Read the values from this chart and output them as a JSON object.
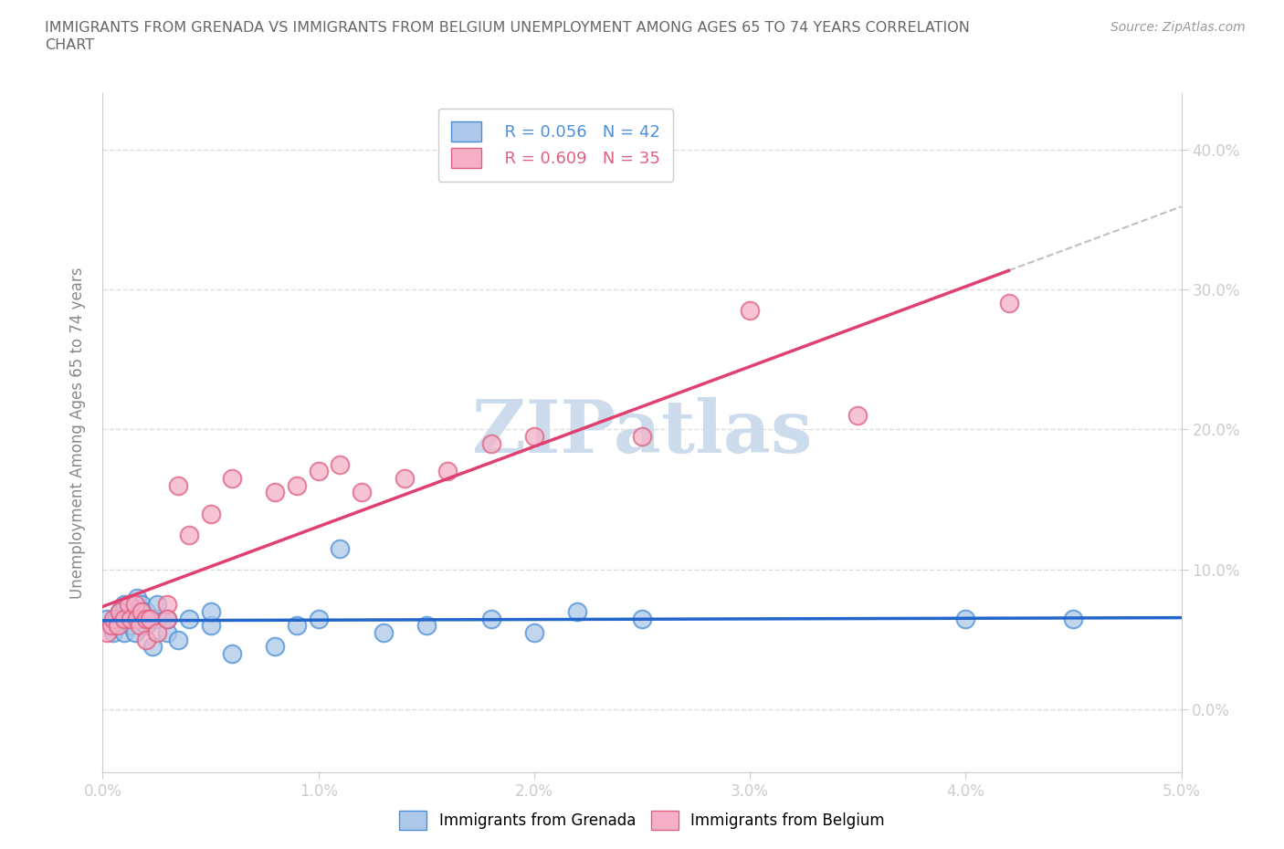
{
  "title_line1": "IMMIGRANTS FROM GRENADA VS IMMIGRANTS FROM BELGIUM UNEMPLOYMENT AMONG AGES 65 TO 74 YEARS CORRELATION",
  "title_line2": "CHART",
  "source_text": "Source: ZipAtlas.com",
  "ylabel": "Unemployment Among Ages 65 to 74 years",
  "xlim": [
    0.0,
    0.05
  ],
  "ylim": [
    -0.045,
    0.44
  ],
  "xticks": [
    0.0,
    0.01,
    0.02,
    0.03,
    0.04,
    0.05
  ],
  "yticks": [
    0.0,
    0.1,
    0.2,
    0.3,
    0.4
  ],
  "xtick_labels": [
    "0.0%",
    "1.0%",
    "2.0%",
    "3.0%",
    "4.0%",
    "5.0%"
  ],
  "ytick_labels": [
    "0.0%",
    "10.0%",
    "20.0%",
    "30.0%",
    "40.0%"
  ],
  "grenada_R": "0.056",
  "grenada_N": "42",
  "belgium_R": "0.609",
  "belgium_N": "35",
  "grenada_color": "#adc8e8",
  "belgium_color": "#f5b0c8",
  "grenada_edge": "#4a90d9",
  "belgium_edge": "#e06080",
  "trend_grenada_color": "#2266cc",
  "trend_belgium_color": "#e04070",
  "trend_dashed_color": "#c0c0c0",
  "background_color": "#ffffff",
  "title_color": "#666666",
  "tick_color": "#4a90d9",
  "grid_color": "#dddddd",
  "watermark_color": "#ccdcec",
  "grenada_x": [
    0.0002,
    0.0004,
    0.0005,
    0.0006,
    0.0007,
    0.0008,
    0.0009,
    0.001,
    0.001,
    0.0012,
    0.0013,
    0.0014,
    0.0015,
    0.0015,
    0.0016,
    0.0017,
    0.0018,
    0.002,
    0.002,
    0.0022,
    0.0023,
    0.0025,
    0.0025,
    0.003,
    0.003,
    0.0035,
    0.004,
    0.005,
    0.005,
    0.006,
    0.008,
    0.009,
    0.01,
    0.011,
    0.013,
    0.015,
    0.018,
    0.02,
    0.022,
    0.025,
    0.04,
    0.045
  ],
  "grenada_y": [
    0.065,
    0.06,
    0.055,
    0.065,
    0.06,
    0.07,
    0.065,
    0.075,
    0.055,
    0.065,
    0.06,
    0.07,
    0.065,
    0.055,
    0.08,
    0.07,
    0.075,
    0.07,
    0.06,
    0.065,
    0.045,
    0.065,
    0.075,
    0.055,
    0.065,
    0.05,
    0.065,
    0.06,
    0.07,
    0.04,
    0.045,
    0.06,
    0.065,
    0.115,
    0.055,
    0.06,
    0.065,
    0.055,
    0.07,
    0.065,
    0.065,
    0.065
  ],
  "belgium_x": [
    0.0002,
    0.0004,
    0.0005,
    0.0007,
    0.0008,
    0.001,
    0.0012,
    0.0013,
    0.0015,
    0.0016,
    0.0017,
    0.0018,
    0.002,
    0.002,
    0.0022,
    0.0025,
    0.003,
    0.003,
    0.0035,
    0.004,
    0.005,
    0.006,
    0.008,
    0.009,
    0.01,
    0.011,
    0.012,
    0.014,
    0.016,
    0.018,
    0.02,
    0.025,
    0.03,
    0.035,
    0.042
  ],
  "belgium_y": [
    0.055,
    0.06,
    0.065,
    0.06,
    0.07,
    0.065,
    0.075,
    0.065,
    0.075,
    0.065,
    0.06,
    0.07,
    0.065,
    0.05,
    0.065,
    0.055,
    0.075,
    0.065,
    0.16,
    0.125,
    0.14,
    0.165,
    0.155,
    0.16,
    0.17,
    0.175,
    0.155,
    0.165,
    0.17,
    0.19,
    0.195,
    0.195,
    0.285,
    0.21,
    0.29
  ],
  "figsize": [
    14.06,
    9.3
  ],
  "dpi": 100
}
